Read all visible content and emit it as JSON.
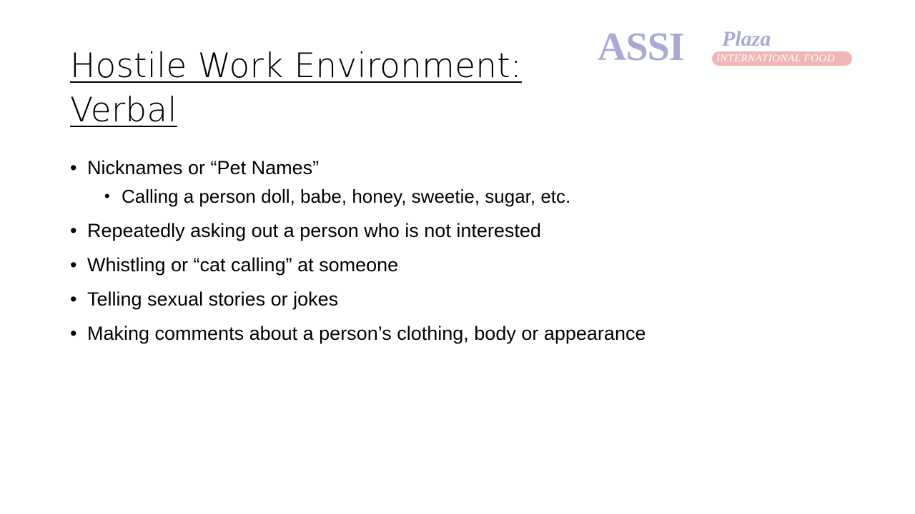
{
  "title": {
    "line1": "Hostile Work Environment:",
    "line2": "Verbal"
  },
  "logo": {
    "brand": "ASSI",
    "plaza": "Plaza",
    "tagline": "INTERNATIONAL FOOD",
    "colors": {
      "primary": "#a9a9d6",
      "band": "#f2b5b5"
    }
  },
  "bullets": [
    {
      "text": "Nicknames or “Pet Names”",
      "sub": [
        "Calling a person doll, babe, honey, sweetie, sugar, etc."
      ]
    },
    {
      "text": "Repeatedly asking out a person who is not interested"
    },
    {
      "text": "Whistling or “cat calling” at someone"
    },
    {
      "text": "Telling sexual stories or jokes"
    },
    {
      "text": "Making comments about a person’s clothing, body or appearance"
    }
  ]
}
